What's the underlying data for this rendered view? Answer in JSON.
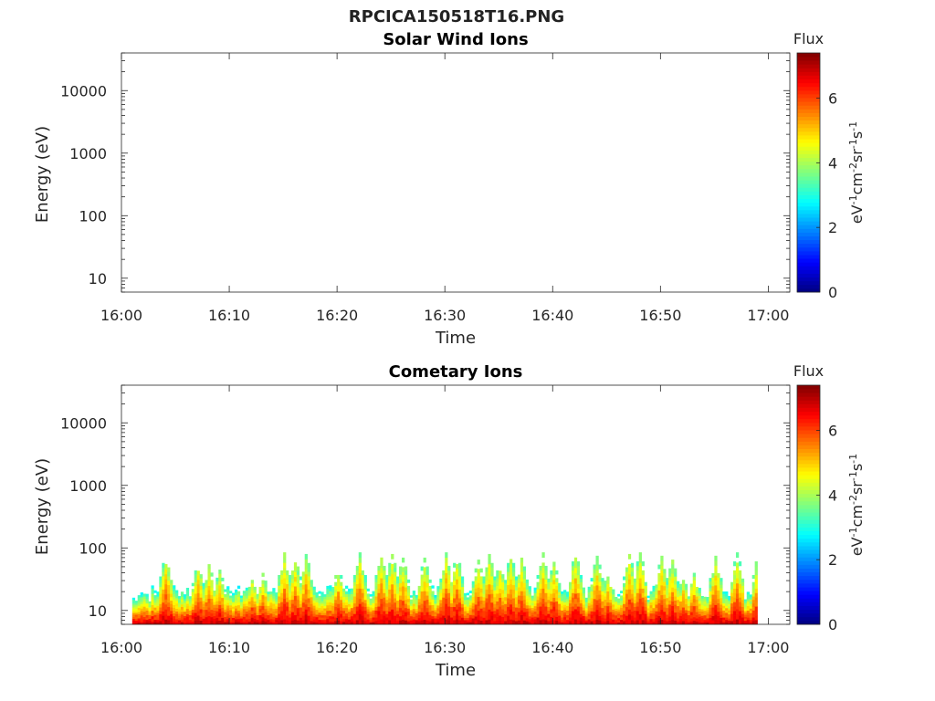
{
  "page": {
    "title": "RPCICA150518T16.PNG"
  },
  "colorbar": {
    "label": "Flux",
    "unit_base": [
      "eV",
      "cm",
      "sr",
      "s"
    ],
    "unit_exp": [
      "-1",
      "-2",
      "-1",
      "-1"
    ],
    "ticks": [
      "0",
      "2",
      "4",
      "6"
    ],
    "max": 7.4,
    "colormap": "jet"
  },
  "chart_data": [
    {
      "type": "heatmap",
      "title": "Solar Wind Ions",
      "xlabel": "Time",
      "ylabel": "Energy (eV)",
      "xticks": [
        "16:00",
        "16:10",
        "16:20",
        "16:30",
        "16:40",
        "16:50",
        "17:00"
      ],
      "yticks": [
        "10",
        "100",
        "1000",
        "10000"
      ],
      "xlim": [
        "16:00",
        "17:02"
      ],
      "ylim": [
        6,
        40000
      ],
      "yscale": "log",
      "zlim": [
        0,
        7.4
      ],
      "grid": false,
      "bursts": []
    },
    {
      "type": "heatmap",
      "title": "Cometary Ions",
      "xlabel": "Time",
      "ylabel": "Energy (eV)",
      "xticks": [
        "16:00",
        "16:10",
        "16:20",
        "16:30",
        "16:40",
        "16:50",
        "17:00"
      ],
      "yticks": [
        "10",
        "100",
        "1000",
        "10000"
      ],
      "xlim": [
        "16:00",
        "17:02"
      ],
      "ylim": [
        6,
        40000
      ],
      "yscale": "log",
      "zlim": [
        0,
        7.4
      ],
      "grid": false,
      "data_start": "16:01",
      "data_end": "16:59",
      "background_energy_eV": 20,
      "bursts": [
        {
          "t": "16:04",
          "e": 80
        },
        {
          "t": "16:07",
          "e": 60
        },
        {
          "t": "16:08",
          "e": 55
        },
        {
          "t": "16:09",
          "e": 45
        },
        {
          "t": "16:12",
          "e": 35
        },
        {
          "t": "16:13",
          "e": 40
        },
        {
          "t": "16:15",
          "e": 85
        },
        {
          "t": "16:16",
          "e": 70
        },
        {
          "t": "16:17",
          "e": 80
        },
        {
          "t": "16:20",
          "e": 50
        },
        {
          "t": "16:22",
          "e": 85
        },
        {
          "t": "16:24",
          "e": 85
        },
        {
          "t": "16:25",
          "e": 80
        },
        {
          "t": "16:26",
          "e": 70
        },
        {
          "t": "16:28",
          "e": 70
        },
        {
          "t": "16:30",
          "e": 85
        },
        {
          "t": "16:31",
          "e": 80
        },
        {
          "t": "16:33",
          "e": 65
        },
        {
          "t": "16:34",
          "e": 80
        },
        {
          "t": "16:35",
          "e": 60
        },
        {
          "t": "16:36",
          "e": 80
        },
        {
          "t": "16:37",
          "e": 70
        },
        {
          "t": "16:39",
          "e": 85
        },
        {
          "t": "16:40",
          "e": 60
        },
        {
          "t": "16:42",
          "e": 85
        },
        {
          "t": "16:44",
          "e": 75
        },
        {
          "t": "16:45",
          "e": 40
        },
        {
          "t": "16:47",
          "e": 80
        },
        {
          "t": "16:48",
          "e": 85
        },
        {
          "t": "16:50",
          "e": 75
        },
        {
          "t": "16:51",
          "e": 65
        },
        {
          "t": "16:52",
          "e": 35
        },
        {
          "t": "16:53",
          "e": 40
        },
        {
          "t": "16:55",
          "e": 75
        },
        {
          "t": "16:57",
          "e": 85
        },
        {
          "t": "16:59",
          "e": 85
        }
      ]
    }
  ]
}
